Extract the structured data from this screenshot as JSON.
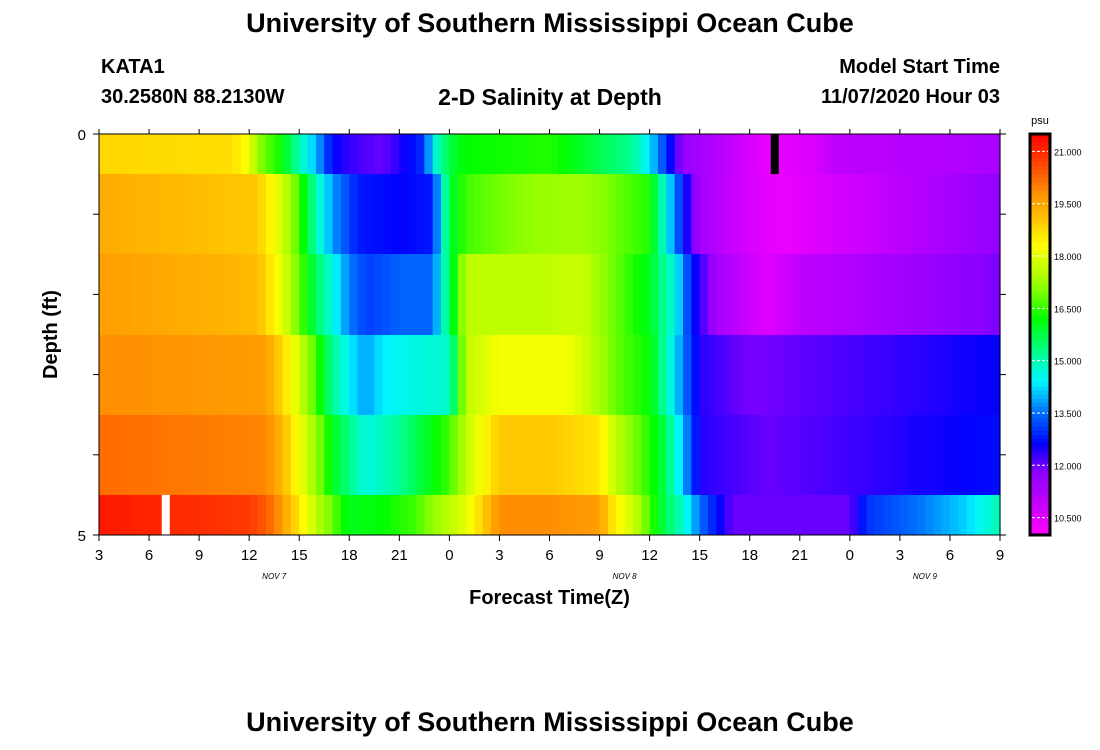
{
  "header": {
    "title": "University of Southern Mississippi Ocean Cube",
    "station": "KATA1",
    "coords": "30.2580N 88.2130W",
    "subtitle": "2-D Salinity at Depth",
    "model_start_label": "Model Start Time",
    "model_start_value": "11/07/2020 Hour 03"
  },
  "footer": {
    "title": "University of Southern Mississippi Ocean Cube"
  },
  "colors": {
    "scale_min_color": "#ff00ff",
    "scale_max_color": "#ff0000",
    "marker_black": "#000000",
    "marker_white": "#ffffff"
  },
  "chart_data": {
    "type": "heatmap",
    "xlabel": "Forecast Time(Z)",
    "ylabel": "Depth (ft)",
    "colorbar_unit": "psu",
    "colorbar_ticks": [
      "21.000",
      "19.500",
      "18.000",
      "16.500",
      "15.000",
      "13.500",
      "12.000",
      "10.500"
    ],
    "colorbar_range": [
      10.0,
      21.5
    ],
    "x_tick_labels": [
      "3",
      "6",
      "9",
      "12",
      "15",
      "18",
      "21",
      "0",
      "3",
      "6",
      "9",
      "12",
      "15",
      "18",
      "21",
      "0",
      "3",
      "6",
      "9"
    ],
    "x_date_labels": [
      {
        "label": "NOV 7",
        "after_tick": 3
      },
      {
        "label": "NOV 8",
        "after_tick": 10
      },
      {
        "label": "NOV 9",
        "after_tick": 16
      }
    ],
    "y_tick_labels": [
      "0",
      "5"
    ],
    "y_range": [
      0,
      5
    ],
    "x_range_hours": [
      0,
      54
    ],
    "rows": [
      {
        "depth": "0-0.5",
        "times": [
          0,
          8,
          9,
          9.5,
          10,
          11,
          12,
          13,
          14,
          15.5,
          17,
          18,
          19.5,
          20,
          21,
          22,
          27,
          32,
          33,
          34,
          35,
          37,
          40,
          43,
          44,
          54
        ],
        "values": [
          18.8,
          18.7,
          18.2,
          17.2,
          16.8,
          16.2,
          15.0,
          14.0,
          12.6,
          12.2,
          12.0,
          12.4,
          13.0,
          14.5,
          15.8,
          16.2,
          16.4,
          15.2,
          14.3,
          13.0,
          11.6,
          11.2,
          10.3,
          10.6,
          11.0,
          11.3
        ]
      },
      {
        "depth": "0.5-1.5",
        "times": [
          0,
          9.5,
          10,
          11,
          12,
          13,
          14,
          15.5,
          18,
          20,
          20.5,
          21,
          22,
          26,
          29,
          33,
          34,
          35,
          36,
          39,
          41,
          54
        ],
        "values": [
          19.4,
          19.0,
          18.6,
          17.8,
          16.6,
          15.0,
          13.8,
          12.8,
          12.6,
          12.8,
          14.4,
          15.8,
          16.6,
          17.2,
          17.3,
          16.4,
          14.5,
          12.8,
          11.4,
          10.6,
          10.3,
          11.7
        ]
      },
      {
        "depth": "1.5-2.5",
        "times": [
          0,
          9.5,
          10,
          11,
          12,
          13,
          14,
          15,
          16,
          18,
          20,
          21,
          22,
          26,
          29,
          31,
          33,
          34.5,
          35.5,
          37,
          40,
          42,
          54
        ],
        "values": [
          19.6,
          19.2,
          18.8,
          18.0,
          16.8,
          15.6,
          14.6,
          13.6,
          13.1,
          13.4,
          13.4,
          15.6,
          17.6,
          17.6,
          17.7,
          16.8,
          16.0,
          14.6,
          12.8,
          11.4,
          10.5,
          11.0,
          11.9
        ]
      },
      {
        "depth": "2.5-3.5",
        "times": [
          0,
          10,
          11,
          12,
          13,
          14,
          15,
          16,
          17,
          21,
          22,
          24,
          28,
          29.5,
          31,
          33,
          34,
          35,
          36,
          39,
          54
        ],
        "values": [
          19.8,
          19.6,
          18.8,
          17.8,
          16.6,
          15.2,
          14.4,
          13.8,
          14.4,
          14.8,
          17.6,
          18.2,
          18.2,
          17.6,
          16.8,
          16.2,
          15.0,
          13.6,
          12.4,
          11.9,
          12.6
        ]
      },
      {
        "depth": "3.5-4.5",
        "times": [
          0,
          10,
          11,
          12,
          13,
          14,
          16,
          18,
          21,
          22,
          24,
          27,
          30,
          31,
          33,
          34,
          35,
          36,
          40,
          54
        ],
        "values": [
          20.2,
          19.9,
          19.2,
          18.2,
          17.2,
          16.0,
          14.6,
          15.2,
          16.6,
          17.6,
          19.0,
          19.0,
          18.6,
          17.6,
          16.4,
          15.6,
          14.0,
          12.4,
          12.0,
          12.7
        ]
      },
      {
        "depth": "4.5-5",
        "times": [
          0,
          9,
          10,
          11,
          12,
          13,
          15,
          17,
          19,
          20.5,
          22,
          24,
          27,
          30,
          31,
          32,
          33,
          34,
          35,
          36,
          38,
          45,
          46,
          49,
          52,
          54
        ],
        "values": [
          21.2,
          20.8,
          20.4,
          19.6,
          18.6,
          17.6,
          16.0,
          16.2,
          16.6,
          17.4,
          18.0,
          19.8,
          19.8,
          19.6,
          18.4,
          17.8,
          16.6,
          15.6,
          14.8,
          13.5,
          12.0,
          12.0,
          13.0,
          13.5,
          14.2,
          15.0
        ]
      }
    ],
    "markers": [
      {
        "color": "black",
        "time_hours": 40.5,
        "depth_range": [
          0,
          0.5
        ]
      },
      {
        "color": "white",
        "time_hours": 4.0,
        "depth_range": [
          4.5,
          5
        ]
      }
    ]
  }
}
